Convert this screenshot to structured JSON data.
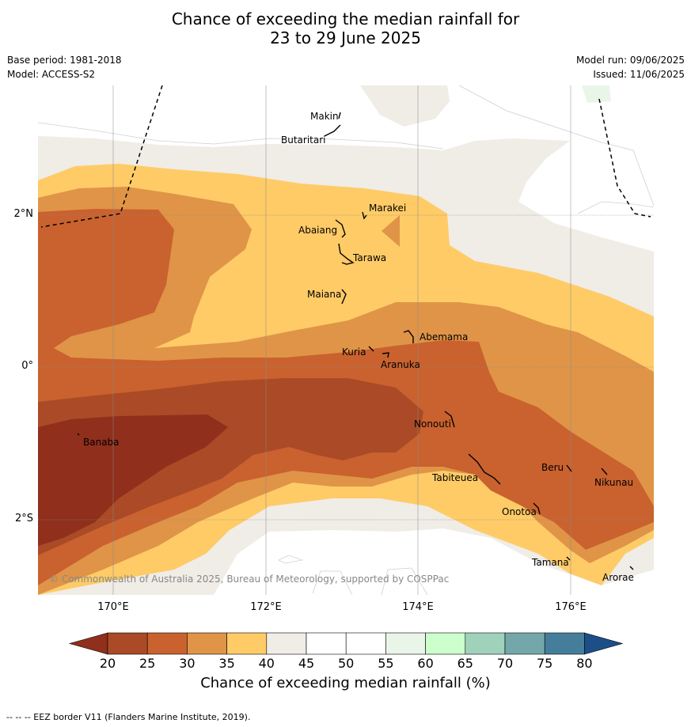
{
  "title_line1": "Chance of exceeding the median rainfall for",
  "title_line2": "23 to 29 June 2025",
  "meta": {
    "base_period": "Base period: 1981-2018",
    "model": "Model: ACCESS-S2",
    "model_run": "Model run: 09/06/2025",
    "issued": "Issued: 11/06/2025"
  },
  "map": {
    "lon_labels": [
      "170°E",
      "172°E",
      "174°E",
      "176°E"
    ],
    "lat_labels": [
      "2°N",
      "0°",
      "2°S"
    ],
    "places": [
      "Makin",
      "Butaritari",
      "Marakei",
      "Abaiang",
      "Tarawa",
      "Maiana",
      "Abemama",
      "Kuria",
      "Aranuka",
      "Banaba",
      "Nonouti",
      "Tabiteuea",
      "Beru",
      "Nikunau",
      "Onotoa",
      "Tamana",
      "Arorae"
    ],
    "copyright": "© Commonwealth of Australia 2025, Bureau of Meteorology, supported by COSPPac"
  },
  "colorbar": {
    "ticks": [
      "20",
      "25",
      "30",
      "35",
      "40",
      "45",
      "50",
      "55",
      "60",
      "65",
      "70",
      "75",
      "80"
    ],
    "colors": [
      "#ab4a26",
      "#c9622f",
      "#e09447",
      "#fecb67",
      "#f0ece6",
      "#ffffff",
      "#ffffff",
      "#eaf5ea",
      "#ccffcc",
      "#a0d2bb",
      "#74a7a9",
      "#457e9a"
    ],
    "under_color": "#8f2f1c",
    "over_color": "#1c4f88",
    "label": "Chance of exceeding median rainfall (%)"
  },
  "footer": "--  --  -- EEZ border V11 (Flanders Marine Institute, 2019)."
}
